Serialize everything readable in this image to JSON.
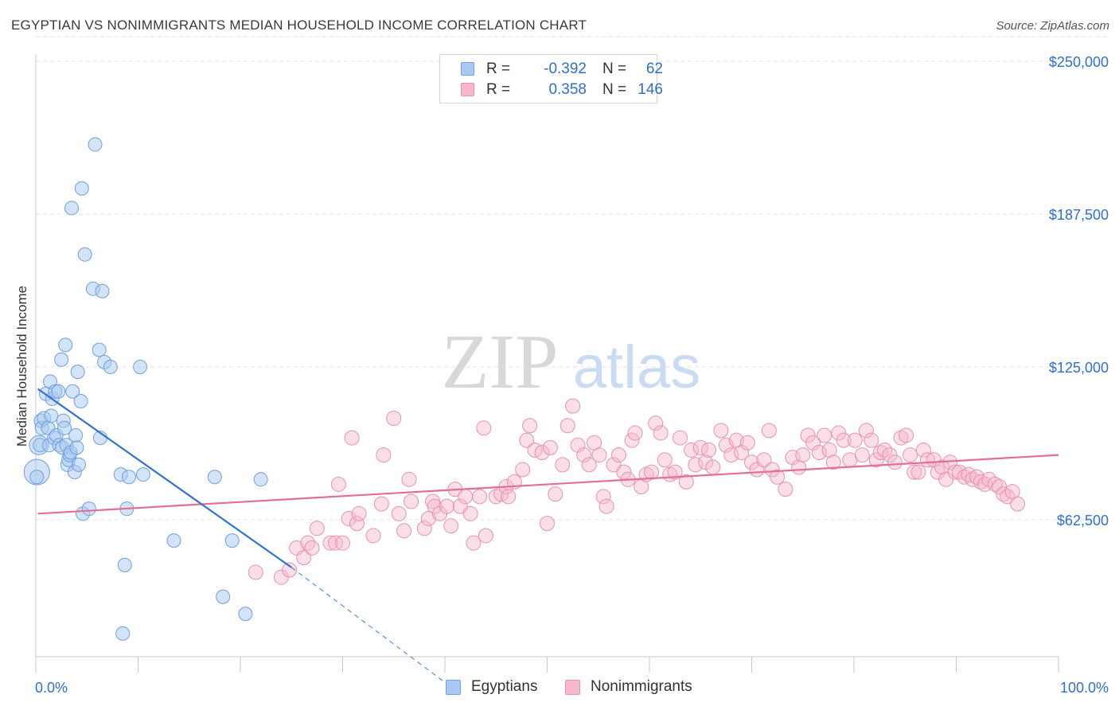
{
  "header": {
    "title": "EGYPTIAN VS NONIMMIGRANTS MEDIAN HOUSEHOLD INCOME CORRELATION CHART",
    "source": "Source: ZipAtlas.com"
  },
  "watermark": {
    "zip": "ZIP",
    "atlas": "atlas"
  },
  "legend": {
    "rows": [
      {
        "r_label": "R =",
        "r_value": "-0.392",
        "n_label": "N =",
        "n_value": "62",
        "color": "#a9c9f2",
        "border": "#6f9fe0"
      },
      {
        "r_label": "R =",
        "r_value": "0.358",
        "n_label": "N =",
        "n_value": "146",
        "color": "#f7b8cb",
        "border": "#e892ad"
      }
    ]
  },
  "bottom_legend": {
    "items": [
      {
        "label": "Egyptians",
        "color": "#a9c9f2",
        "border": "#6f9fe0"
      },
      {
        "label": "Nonimmigrants",
        "color": "#f7b8cb",
        "border": "#e892ad"
      }
    ]
  },
  "chart_data": {
    "type": "scatter",
    "ylabel": "Median Household Income",
    "xlim": [
      0,
      100
    ],
    "ylim": [
      0,
      260000
    ],
    "x_tick_labels": [
      "0.0%",
      "100.0%"
    ],
    "y_ticks": [
      62500,
      125000,
      187500,
      250000
    ],
    "y_tick_labels": [
      "$62,500",
      "$125,000",
      "$187,500",
      "$250,000"
    ],
    "grid": true,
    "colors": {
      "egyptians": "#6f9fe0",
      "nonimmigrants": "#e892ad",
      "egyptians_line": "#2f72d6",
      "nonimmigrants_line": "#e56e96",
      "tick_text": "#2f6fd1"
    },
    "series": [
      {
        "name": "Egyptians",
        "trend": {
          "x": [
            0.2,
            25
          ],
          "y": [
            116000,
            43000
          ],
          "dashed_to": {
            "x": 40,
            "y": -4000
          }
        },
        "points": [
          [
            0.1,
            80000
          ],
          [
            0.4,
            93000
          ],
          [
            0.5,
            103000
          ],
          [
            0.6,
            100000
          ],
          [
            0.8,
            104000
          ],
          [
            1.0,
            114000
          ],
          [
            1.2,
            100000
          ],
          [
            1.3,
            93000
          ],
          [
            1.4,
            119000
          ],
          [
            1.5,
            105000
          ],
          [
            1.6,
            112000
          ],
          [
            1.8,
            96000
          ],
          [
            1.9,
            115000
          ],
          [
            2.0,
            97000
          ],
          [
            2.2,
            115000
          ],
          [
            2.3,
            93000
          ],
          [
            2.5,
            128000
          ],
          [
            2.6,
            92000
          ],
          [
            2.7,
            103000
          ],
          [
            2.8,
            100000
          ],
          [
            2.9,
            134000
          ],
          [
            3.0,
            93000
          ],
          [
            3.1,
            85000
          ],
          [
            3.2,
            87000
          ],
          [
            3.3,
            89000
          ],
          [
            3.4,
            90000
          ],
          [
            3.5,
            190000
          ],
          [
            3.6,
            115000
          ],
          [
            3.8,
            82000
          ],
          [
            3.9,
            97000
          ],
          [
            4.0,
            92000
          ],
          [
            4.1,
            123000
          ],
          [
            4.2,
            85000
          ],
          [
            4.4,
            111000
          ],
          [
            4.5,
            198000
          ],
          [
            4.6,
            65000
          ],
          [
            4.8,
            171000
          ],
          [
            5.2,
            67000
          ],
          [
            5.6,
            157000
          ],
          [
            5.8,
            216000
          ],
          [
            6.2,
            132000
          ],
          [
            6.3,
            96000
          ],
          [
            6.5,
            156000
          ],
          [
            6.7,
            127000
          ],
          [
            7.3,
            125000
          ],
          [
            8.3,
            81000
          ],
          [
            8.5,
            16000
          ],
          [
            8.7,
            44000
          ],
          [
            8.9,
            67000
          ],
          [
            9.1,
            80000
          ],
          [
            10.2,
            125000
          ],
          [
            10.5,
            81000
          ],
          [
            13.5,
            54000
          ],
          [
            17.5,
            80000
          ],
          [
            18.3,
            31000
          ],
          [
            19.2,
            54000
          ],
          [
            20.5,
            24000
          ],
          [
            22.0,
            79000
          ]
        ],
        "large_points": [
          [
            0.1,
            82000,
            16
          ],
          [
            0.3,
            93000,
            12
          ]
        ]
      },
      {
        "name": "Nonimmigrants",
        "trend": {
          "x": [
            0.2,
            100
          ],
          "y": [
            65000,
            89000
          ]
        },
        "points": [
          [
            21.5,
            41000
          ],
          [
            24.0,
            39000
          ],
          [
            24.8,
            42000
          ],
          [
            25.5,
            51000
          ],
          [
            26.2,
            47000
          ],
          [
            26.6,
            53000
          ],
          [
            27.5,
            59000
          ],
          [
            27.0,
            51000
          ],
          [
            28.8,
            53000
          ],
          [
            29.3,
            53000
          ],
          [
            29.6,
            77000
          ],
          [
            30.0,
            53000
          ],
          [
            30.6,
            63000
          ],
          [
            30.9,
            96000
          ],
          [
            31.4,
            61000
          ],
          [
            31.6,
            65000
          ],
          [
            33.0,
            56000
          ],
          [
            33.8,
            69000
          ],
          [
            34.0,
            89000
          ],
          [
            35.0,
            104000
          ],
          [
            35.5,
            65000
          ],
          [
            36.0,
            58000
          ],
          [
            36.5,
            79000
          ],
          [
            36.7,
            70000
          ],
          [
            38.0,
            59000
          ],
          [
            38.4,
            63000
          ],
          [
            38.8,
            70000
          ],
          [
            39.0,
            68000
          ],
          [
            39.5,
            65000
          ],
          [
            40.2,
            68000
          ],
          [
            40.6,
            60000
          ],
          [
            41.0,
            75000
          ],
          [
            41.5,
            68000
          ],
          [
            42.0,
            72000
          ],
          [
            42.5,
            65000
          ],
          [
            42.8,
            53000
          ],
          [
            43.4,
            72000
          ],
          [
            43.8,
            100000
          ],
          [
            44.0,
            56000
          ],
          [
            45.0,
            72000
          ],
          [
            45.5,
            73000
          ],
          [
            46.0,
            76000
          ],
          [
            46.2,
            72000
          ],
          [
            46.8,
            78000
          ],
          [
            47.6,
            83000
          ],
          [
            48.3,
            101000
          ],
          [
            48.0,
            95000
          ],
          [
            48.8,
            91000
          ],
          [
            49.5,
            90000
          ],
          [
            50.3,
            92000
          ],
          [
            50.0,
            61000
          ],
          [
            50.8,
            73000
          ],
          [
            51.5,
            85000
          ],
          [
            52.0,
            101000
          ],
          [
            52.5,
            109000
          ],
          [
            53.0,
            93000
          ],
          [
            53.6,
            89000
          ],
          [
            54.1,
            85000
          ],
          [
            54.6,
            94000
          ],
          [
            55.1,
            89000
          ],
          [
            55.5,
            72000
          ],
          [
            55.8,
            68000
          ],
          [
            56.5,
            85000
          ],
          [
            57.0,
            89000
          ],
          [
            57.5,
            82000
          ],
          [
            57.9,
            79000
          ],
          [
            58.3,
            95000
          ],
          [
            58.6,
            98000
          ],
          [
            59.2,
            76000
          ],
          [
            59.7,
            81000
          ],
          [
            60.2,
            82000
          ],
          [
            60.6,
            102000
          ],
          [
            61.1,
            98000
          ],
          [
            61.5,
            87000
          ],
          [
            62.0,
            81000
          ],
          [
            62.5,
            82000
          ],
          [
            63.0,
            96000
          ],
          [
            63.6,
            78000
          ],
          [
            64.1,
            91000
          ],
          [
            64.5,
            85000
          ],
          [
            65.0,
            92000
          ],
          [
            65.5,
            86000
          ],
          [
            65.8,
            91000
          ],
          [
            66.2,
            84000
          ],
          [
            67.0,
            99000
          ],
          [
            67.5,
            93000
          ],
          [
            68.0,
            89000
          ],
          [
            68.5,
            95000
          ],
          [
            69.0,
            90000
          ],
          [
            69.6,
            94000
          ],
          [
            70.0,
            86000
          ],
          [
            70.5,
            83000
          ],
          [
            71.2,
            87000
          ],
          [
            71.7,
            99000
          ],
          [
            72.0,
            83000
          ],
          [
            72.5,
            80000
          ],
          [
            73.3,
            75000
          ],
          [
            74.0,
            88000
          ],
          [
            74.6,
            84000
          ],
          [
            75.0,
            89000
          ],
          [
            75.5,
            97000
          ],
          [
            76.0,
            94000
          ],
          [
            76.6,
            90000
          ],
          [
            77.1,
            97000
          ],
          [
            77.6,
            91000
          ],
          [
            78.0,
            86000
          ],
          [
            78.5,
            98000
          ],
          [
            79.0,
            95000
          ],
          [
            79.6,
            87000
          ],
          [
            80.1,
            95000
          ],
          [
            80.8,
            89000
          ],
          [
            81.2,
            99000
          ],
          [
            81.7,
            95000
          ],
          [
            82.2,
            87000
          ],
          [
            82.6,
            90000
          ],
          [
            83.0,
            91000
          ],
          [
            83.5,
            89000
          ],
          [
            84.0,
            86000
          ],
          [
            84.6,
            96000
          ],
          [
            85.1,
            97000
          ],
          [
            85.5,
            89000
          ],
          [
            85.9,
            82000
          ],
          [
            86.3,
            82000
          ],
          [
            86.8,
            91000
          ],
          [
            87.2,
            87000
          ],
          [
            87.8,
            87000
          ],
          [
            88.2,
            82000
          ],
          [
            88.6,
            84000
          ],
          [
            89.0,
            79000
          ],
          [
            89.4,
            86000
          ],
          [
            89.9,
            82000
          ],
          [
            90.3,
            82000
          ],
          [
            90.8,
            80000
          ],
          [
            91.2,
            81000
          ],
          [
            91.6,
            79000
          ],
          [
            92.0,
            80000
          ],
          [
            92.4,
            78000
          ],
          [
            92.8,
            77000
          ],
          [
            93.2,
            79000
          ],
          [
            93.8,
            77000
          ],
          [
            94.2,
            76000
          ],
          [
            94.6,
            73000
          ],
          [
            95.0,
            72000
          ],
          [
            95.5,
            74000
          ],
          [
            96.0,
            69000
          ]
        ]
      }
    ]
  }
}
